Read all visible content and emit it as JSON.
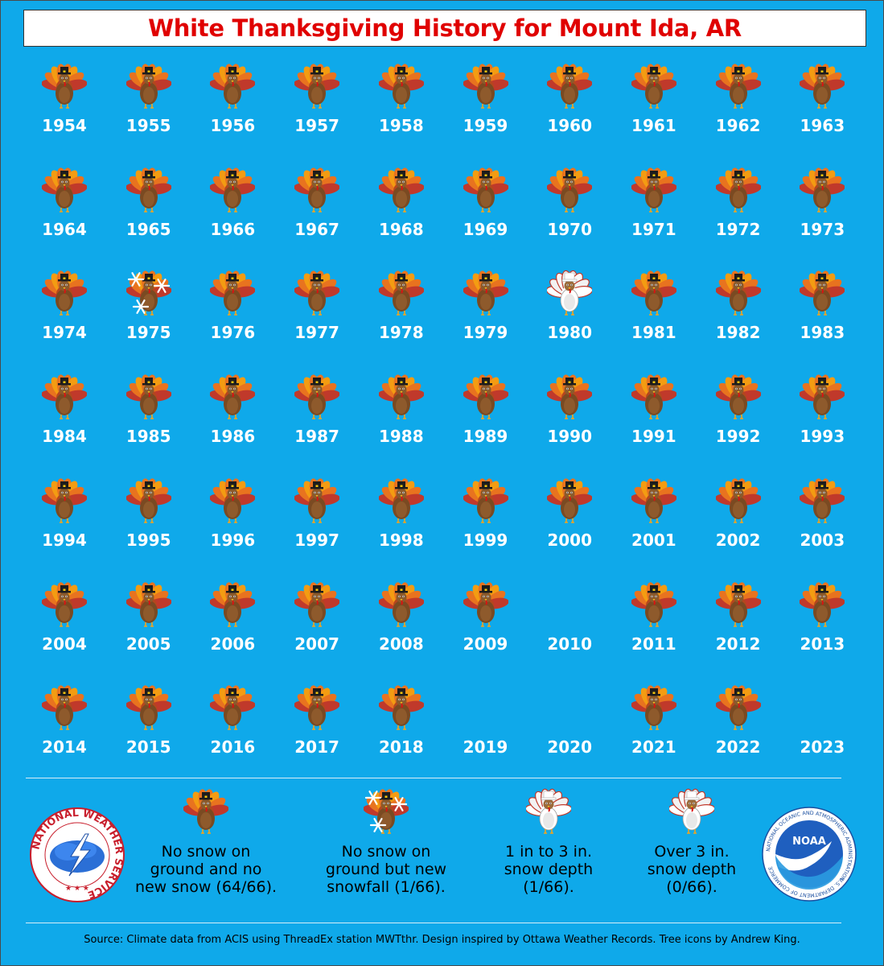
{
  "title": "White Thanksgiving History for Mount Ida, AR",
  "colors": {
    "background": "#0fa9ea",
    "title_text": "#e00000",
    "year_text": "#ffffff"
  },
  "chart_data": {
    "type": "table",
    "title": "White Thanksgiving History for Mount Ida, AR",
    "columns": 10,
    "categories": {
      "none": "No snow on ground and no new snow",
      "new_snow": "No snow on ground but new snowfall",
      "depth_1_3": "1 in to 3 in. snow depth",
      "depth_over_3": "Over 3 in. snow depth",
      "missing": "no icon shown"
    },
    "years": [
      {
        "year": "1954",
        "status": "none"
      },
      {
        "year": "1955",
        "status": "none"
      },
      {
        "year": "1956",
        "status": "none"
      },
      {
        "year": "1957",
        "status": "none"
      },
      {
        "year": "1958",
        "status": "none"
      },
      {
        "year": "1959",
        "status": "none"
      },
      {
        "year": "1960",
        "status": "none"
      },
      {
        "year": "1961",
        "status": "none"
      },
      {
        "year": "1962",
        "status": "none"
      },
      {
        "year": "1963",
        "status": "none"
      },
      {
        "year": "1964",
        "status": "none"
      },
      {
        "year": "1965",
        "status": "none"
      },
      {
        "year": "1966",
        "status": "none"
      },
      {
        "year": "1967",
        "status": "none"
      },
      {
        "year": "1968",
        "status": "none"
      },
      {
        "year": "1969",
        "status": "none"
      },
      {
        "year": "1970",
        "status": "none"
      },
      {
        "year": "1971",
        "status": "none"
      },
      {
        "year": "1972",
        "status": "none"
      },
      {
        "year": "1973",
        "status": "none"
      },
      {
        "year": "1974",
        "status": "none"
      },
      {
        "year": "1975",
        "status": "new_snow"
      },
      {
        "year": "1976",
        "status": "none"
      },
      {
        "year": "1977",
        "status": "none"
      },
      {
        "year": "1978",
        "status": "none"
      },
      {
        "year": "1979",
        "status": "none"
      },
      {
        "year": "1980",
        "status": "depth_1_3"
      },
      {
        "year": "1981",
        "status": "none"
      },
      {
        "year": "1982",
        "status": "none"
      },
      {
        "year": "1983",
        "status": "none"
      },
      {
        "year": "1984",
        "status": "none"
      },
      {
        "year": "1985",
        "status": "none"
      },
      {
        "year": "1986",
        "status": "none"
      },
      {
        "year": "1987",
        "status": "none"
      },
      {
        "year": "1988",
        "status": "none"
      },
      {
        "year": "1989",
        "status": "none"
      },
      {
        "year": "1990",
        "status": "none"
      },
      {
        "year": "1991",
        "status": "none"
      },
      {
        "year": "1992",
        "status": "none"
      },
      {
        "year": "1993",
        "status": "none"
      },
      {
        "year": "1994",
        "status": "none"
      },
      {
        "year": "1995",
        "status": "none"
      },
      {
        "year": "1996",
        "status": "none"
      },
      {
        "year": "1997",
        "status": "none"
      },
      {
        "year": "1998",
        "status": "none"
      },
      {
        "year": "1999",
        "status": "none"
      },
      {
        "year": "2000",
        "status": "none"
      },
      {
        "year": "2001",
        "status": "none"
      },
      {
        "year": "2002",
        "status": "none"
      },
      {
        "year": "2003",
        "status": "none"
      },
      {
        "year": "2004",
        "status": "none"
      },
      {
        "year": "2005",
        "status": "none"
      },
      {
        "year": "2006",
        "status": "none"
      },
      {
        "year": "2007",
        "status": "none"
      },
      {
        "year": "2008",
        "status": "none"
      },
      {
        "year": "2009",
        "status": "none"
      },
      {
        "year": "2010",
        "status": "missing"
      },
      {
        "year": "2011",
        "status": "none"
      },
      {
        "year": "2012",
        "status": "none"
      },
      {
        "year": "2013",
        "status": "none"
      },
      {
        "year": "2014",
        "status": "none"
      },
      {
        "year": "2015",
        "status": "none"
      },
      {
        "year": "2016",
        "status": "none"
      },
      {
        "year": "2017",
        "status": "none"
      },
      {
        "year": "2018",
        "status": "none"
      },
      {
        "year": "2019",
        "status": "missing"
      },
      {
        "year": "2020",
        "status": "missing"
      },
      {
        "year": "2021",
        "status": "none"
      },
      {
        "year": "2022",
        "status": "none"
      },
      {
        "year": "2023",
        "status": "missing"
      }
    ]
  },
  "legend": [
    {
      "status": "none",
      "lines": [
        "No snow on",
        "ground and no",
        "new snow (64/66)."
      ]
    },
    {
      "status": "new_snow",
      "lines": [
        "No snow on",
        "ground but new",
        "snowfall (1/66)."
      ]
    },
    {
      "status": "depth_1_3",
      "lines": [
        "1 in to 3 in.",
        "snow depth",
        "(1/66)."
      ]
    },
    {
      "status": "depth_over_3",
      "lines": [
        "Over 3 in.",
        "snow depth",
        "(0/66)."
      ]
    }
  ],
  "logos": {
    "nws_text": "NATIONAL WEATHER SERVICE",
    "noaa_center": "NOAA",
    "noaa_ring": "NATIONAL OCEANIC AND ATMOSPHERIC ADMINISTRATION",
    "noaa_ring_bottom": "U.S. DEPARTMENT OF COMMERCE"
  },
  "source": "Source: Climate data from ACIS using ThreadEx station MWTthr. Design inspired by Ottawa Weather Records. Tree icons by Andrew King."
}
